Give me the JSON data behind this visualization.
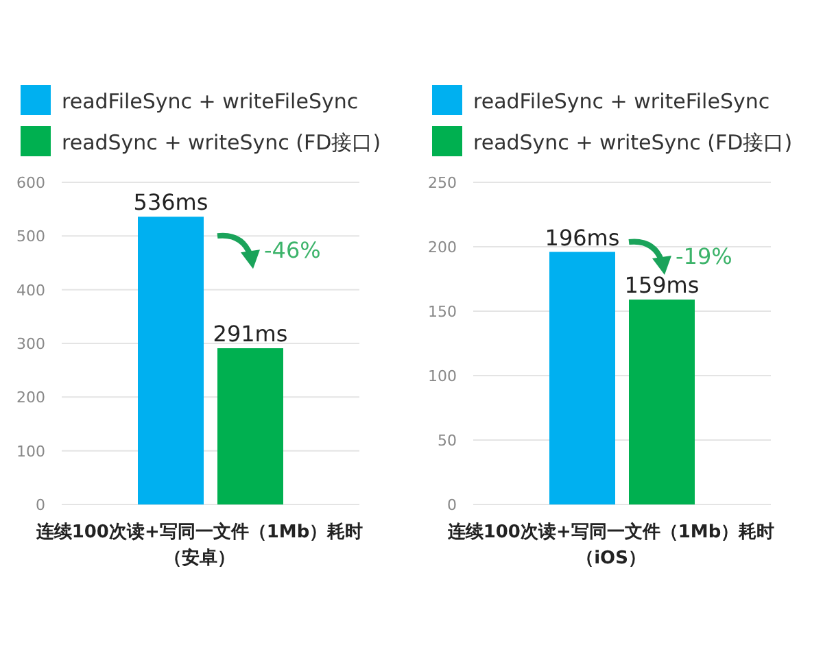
{
  "chart_data": [
    {
      "type": "bar",
      "categories": [
        null
      ],
      "series": [
        {
          "name": "readFileSync + writeFileSync",
          "color": "#00b0f0",
          "values": [
            536
          ],
          "value_labels": [
            "536ms"
          ]
        },
        {
          "name": "readSync + writeSync (FD接口)",
          "color": "#00b050",
          "values": [
            291
          ],
          "value_labels": [
            "291ms"
          ]
        }
      ],
      "ylim": [
        0,
        600
      ],
      "yticks": [
        0,
        100,
        200,
        300,
        400,
        500,
        600
      ],
      "grid": "y",
      "legend": "top",
      "xlabel": "连续100次读+写同一文件（1Mb）耗时（安卓）",
      "annotations": [
        "-46%"
      ]
    },
    {
      "type": "bar",
      "categories": [
        null
      ],
      "series": [
        {
          "name": "readFileSync + writeFileSync",
          "color": "#00b0f0",
          "values": [
            196
          ],
          "value_labels": [
            "196ms"
          ]
        },
        {
          "name": "readSync + writeSync (FD接口)",
          "color": "#00b050",
          "values": [
            159
          ],
          "value_labels": [
            "159ms"
          ]
        }
      ],
      "ylim": [
        0,
        250
      ],
      "yticks": [
        0,
        50,
        100,
        150,
        200,
        250
      ],
      "grid": "y",
      "legend": "top",
      "xlabel": "连续100次读+写同一文件（1Mb）耗时（iOS）",
      "annotations": [
        "-19%"
      ]
    }
  ]
}
